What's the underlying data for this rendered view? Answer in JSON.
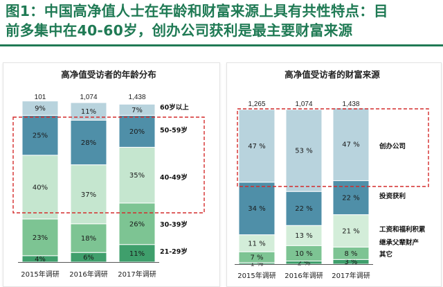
{
  "headline": {
    "line1": "图1：中国高净值人士在年龄和财富来源上具有共性特点：目",
    "line2": "前多集中在40-60岁，创办公司获利是最主要财富来源"
  },
  "colors": {
    "brand": "#1f7a54",
    "highlight_box": "#d42b2b"
  },
  "chart_data": [
    {
      "type": "bar",
      "stacked": true,
      "percent": true,
      "title": "高净值受访者的年龄分布",
      "categories": [
        "2015年调研",
        "2016年调研",
        "2017年调研"
      ],
      "sample_sizes": [
        "101",
        "1,074",
        "1,438"
      ],
      "series": [
        {
          "name": "21-29岁",
          "values": [
            4,
            6,
            11
          ],
          "labels": [
            "4%",
            "6%",
            "11%"
          ],
          "color": "#3f9f6c"
        },
        {
          "name": "30-39岁",
          "values": [
            23,
            18,
            26
          ],
          "labels": [
            "23%",
            "18%",
            "26%"
          ],
          "color": "#7dc493"
        },
        {
          "name": "40-49岁",
          "values": [
            40,
            37,
            35
          ],
          "labels": [
            "40%",
            "37%",
            "35%"
          ],
          "color": "#c5e6cf"
        },
        {
          "name": "50-59岁",
          "values": [
            25,
            28,
            20
          ],
          "labels": [
            "25%",
            "28%",
            "20%"
          ],
          "color": "#4f8fa8"
        },
        {
          "name": "60岁以上",
          "values": [
            9,
            11,
            7
          ],
          "labels": [
            "9%",
            "11%",
            "7%"
          ],
          "color": "#b8d3dd"
        }
      ],
      "highlight": [
        "40-49岁",
        "50-59岁"
      ],
      "ylim": [
        0,
        100
      ],
      "grid": false,
      "legend": "right"
    },
    {
      "type": "bar",
      "stacked": true,
      "percent": true,
      "title": "高净值受访者的财富来源",
      "categories": [
        "2015年调研",
        "2016年调研",
        "2017年调研"
      ],
      "sample_sizes": [
        "1,265",
        "1,074",
        "1,438"
      ],
      "series": [
        {
          "name": "其它",
          "values": [
            1,
            2,
            3
          ],
          "labels": [
            "1 %",
            "2 %",
            "3 %"
          ],
          "color": "#3f9f6c"
        },
        {
          "name": "继承父辈财产",
          "values": [
            7,
            10,
            8
          ],
          "labels": [
            "7 %",
            "10 %",
            "8 %"
          ],
          "color": "#7dc493"
        },
        {
          "name": "工资和福利积累",
          "values": [
            11,
            13,
            21
          ],
          "labels": [
            "11 %",
            "13 %",
            "21 %"
          ],
          "color": "#d3edd9"
        },
        {
          "name": "投资获利",
          "values": [
            34,
            22,
            22
          ],
          "labels": [
            "34 %",
            "22 %",
            "22 %"
          ],
          "color": "#4f8fa8"
        },
        {
          "name": "创办公司",
          "values": [
            47,
            53,
            47
          ],
          "labels": [
            "47 %",
            "53 %",
            "47 %"
          ],
          "color": "#b8d3dd"
        }
      ],
      "highlight": [
        "创办公司"
      ],
      "ylim": [
        0,
        100
      ],
      "grid": false,
      "legend": "right"
    }
  ]
}
